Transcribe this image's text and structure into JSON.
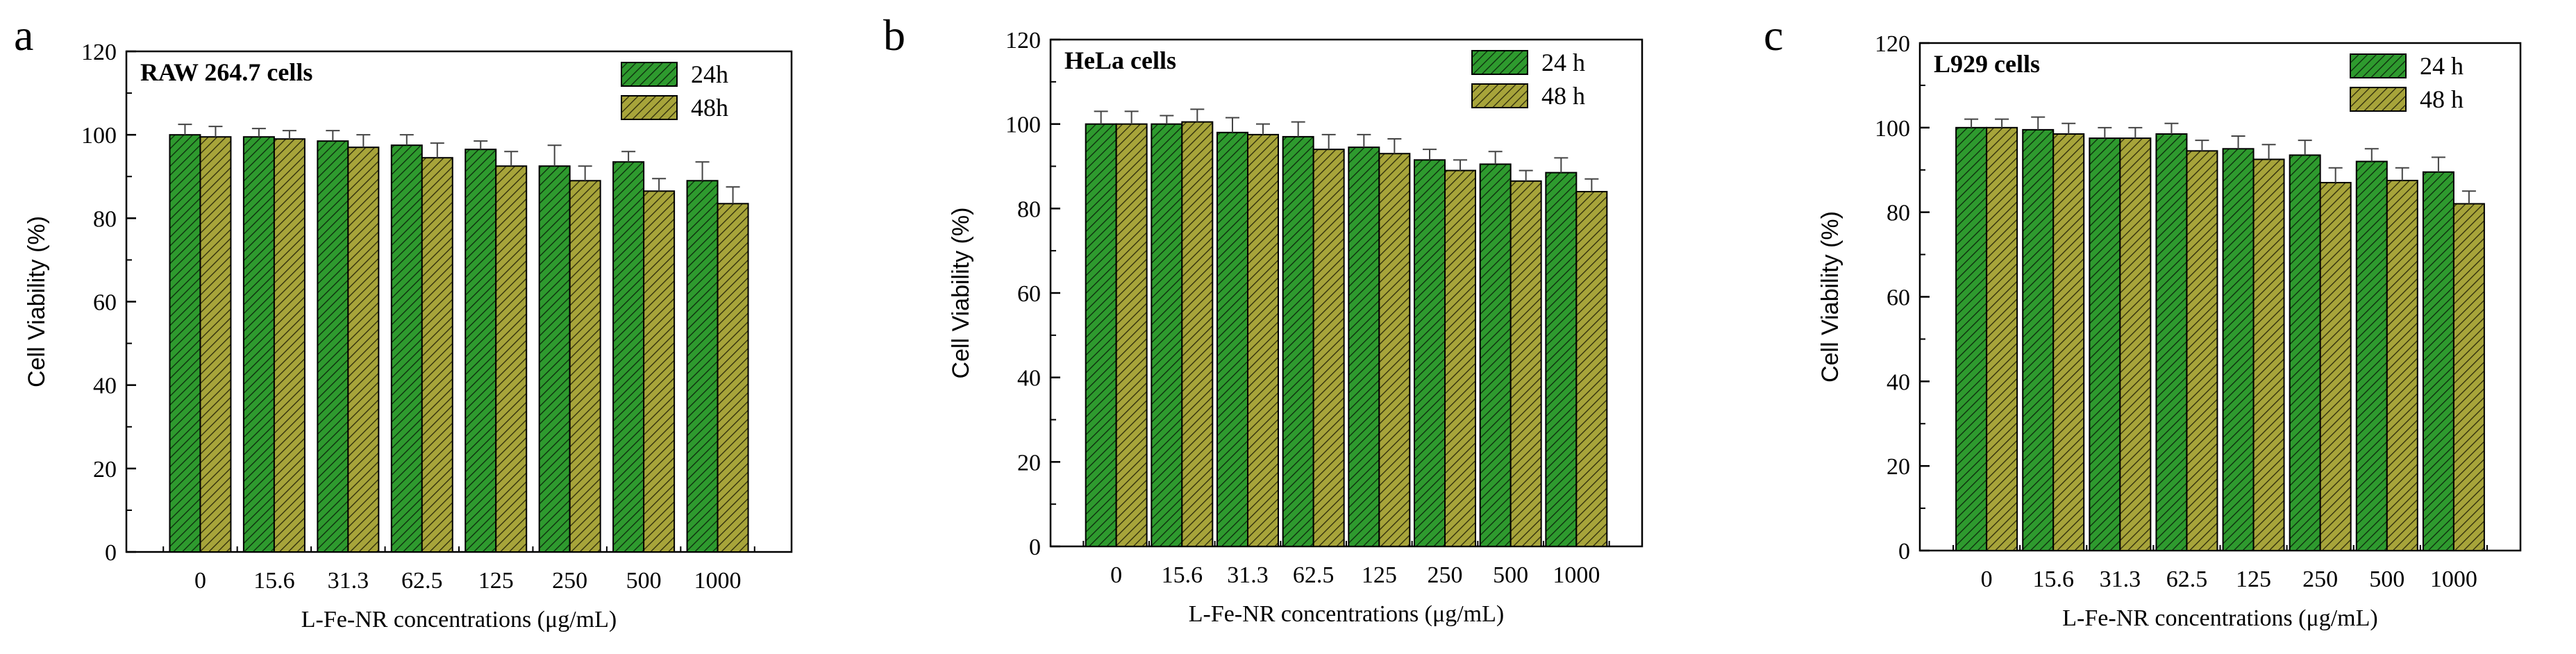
{
  "chart_data": [
    {
      "type": "bar",
      "panel_label": "a",
      "title": "RAW 264.7 cells",
      "xlabel": "L-Fe-NR concentrations (μg/mL)",
      "ylabel": "Cell Viability (%)",
      "ylim": [
        0,
        120
      ],
      "yticks": [
        "0",
        "20",
        "40",
        "60",
        "80",
        "100",
        "120"
      ],
      "categories": [
        "0",
        "15.6",
        "31.3",
        "62.5",
        "125",
        "250",
        "500",
        "1000"
      ],
      "series": [
        {
          "name": "24h",
          "values": [
            100,
            99.5,
            98.5,
            97.5,
            96.5,
            92.5,
            93.5,
            89
          ],
          "errors": [
            2.5,
            2,
            2.5,
            2.5,
            2,
            5,
            2.5,
            4.5
          ],
          "color": "#2e9a2e"
        },
        {
          "name": "48h",
          "values": [
            99.5,
            99,
            97,
            94.5,
            92.5,
            89,
            86.5,
            83.5
          ],
          "errors": [
            2.5,
            2,
            3,
            3.5,
            3.5,
            3.5,
            3,
            4
          ],
          "color": "#a7a43a"
        }
      ],
      "legend": "top-right",
      "grid": false
    },
    {
      "type": "bar",
      "panel_label": "b",
      "title": "HeLa cells",
      "xlabel": "L-Fe-NR concentrations (μg/mL)",
      "ylabel": "Cell Viability (%)",
      "ylim": [
        0,
        120
      ],
      "yticks": [
        "0",
        "20",
        "40",
        "60",
        "80",
        "100",
        "120"
      ],
      "categories": [
        "0",
        "15.6",
        "31.3",
        "62.5",
        "125",
        "250",
        "500",
        "1000"
      ],
      "series": [
        {
          "name": "24 h",
          "values": [
            100,
            100,
            98,
            97,
            94.5,
            91.5,
            90.5,
            88.5
          ],
          "errors": [
            3,
            2,
            3.5,
            3.5,
            3,
            2.5,
            3,
            3.5
          ],
          "color": "#2e9a2e"
        },
        {
          "name": "48 h",
          "values": [
            100,
            100.5,
            97.5,
            94,
            93,
            89,
            86.5,
            84
          ],
          "errors": [
            3,
            3,
            2.5,
            3.5,
            3.5,
            2.5,
            2.5,
            3
          ],
          "color": "#a7a43a"
        }
      ],
      "legend": "top-right",
      "grid": false
    },
    {
      "type": "bar",
      "panel_label": "c",
      "title": "L929 cells",
      "xlabel": "L-Fe-NR concentrations (μg/mL)",
      "ylabel": "Cell Viability (%)",
      "ylim": [
        0,
        120
      ],
      "yticks": [
        "0",
        "20",
        "40",
        "60",
        "80",
        "100",
        "120"
      ],
      "categories": [
        "0",
        "15.6",
        "31.3",
        "62.5",
        "125",
        "250",
        "500",
        "1000"
      ],
      "series": [
        {
          "name": "24 h",
          "values": [
            100,
            99.5,
            97.5,
            98.5,
            95,
            93.5,
            92,
            89.5
          ],
          "errors": [
            2,
            3,
            2.5,
            2.5,
            3,
            3.5,
            3,
            3.5
          ],
          "color": "#2e9a2e"
        },
        {
          "name": "48 h",
          "values": [
            100,
            98.5,
            97.5,
            94.5,
            92.5,
            87,
            87.5,
            82
          ],
          "errors": [
            2,
            2.5,
            2.5,
            2.5,
            3.5,
            3.5,
            3,
            3
          ],
          "color": "#a7a43a"
        }
      ],
      "legend": "top-right",
      "grid": false
    }
  ]
}
